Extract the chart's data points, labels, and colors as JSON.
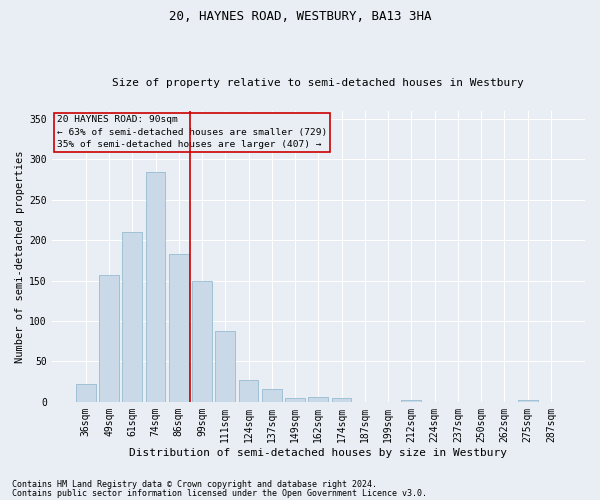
{
  "title": "20, HAYNES ROAD, WESTBURY, BA13 3HA",
  "subtitle": "Size of property relative to semi-detached houses in Westbury",
  "xlabel": "Distribution of semi-detached houses by size in Westbury",
  "ylabel": "Number of semi-detached properties",
  "footnote1": "Contains HM Land Registry data © Crown copyright and database right 2024.",
  "footnote2": "Contains public sector information licensed under the Open Government Licence v3.0.",
  "annotation_line1": "20 HAYNES ROAD: 90sqm",
  "annotation_line2": "← 63% of semi-detached houses are smaller (729)",
  "annotation_line3": "35% of semi-detached houses are larger (407) →",
  "bar_color": "#c9d9e8",
  "bar_edge_color": "#8ab4cc",
  "vline_color": "#cc0000",
  "vline_x": 4.5,
  "annotation_box_color": "#cc0000",
  "categories": [
    "36sqm",
    "49sqm",
    "61sqm",
    "74sqm",
    "86sqm",
    "99sqm",
    "111sqm",
    "124sqm",
    "137sqm",
    "149sqm",
    "162sqm",
    "174sqm",
    "187sqm",
    "199sqm",
    "212sqm",
    "224sqm",
    "237sqm",
    "250sqm",
    "262sqm",
    "275sqm",
    "287sqm"
  ],
  "values": [
    22,
    157,
    210,
    285,
    183,
    150,
    88,
    27,
    16,
    5,
    6,
    5,
    0,
    0,
    2,
    0,
    0,
    0,
    0,
    2,
    0
  ],
  "ylim": [
    0,
    360
  ],
  "yticks": [
    0,
    50,
    100,
    150,
    200,
    250,
    300,
    350
  ],
  "background_color": "#e8eef4",
  "grid_color": "#ffffff",
  "title_fontsize": 9,
  "subtitle_fontsize": 8,
  "ylabel_fontsize": 7.5,
  "xlabel_fontsize": 8,
  "tick_fontsize": 7,
  "footnote_fontsize": 6
}
